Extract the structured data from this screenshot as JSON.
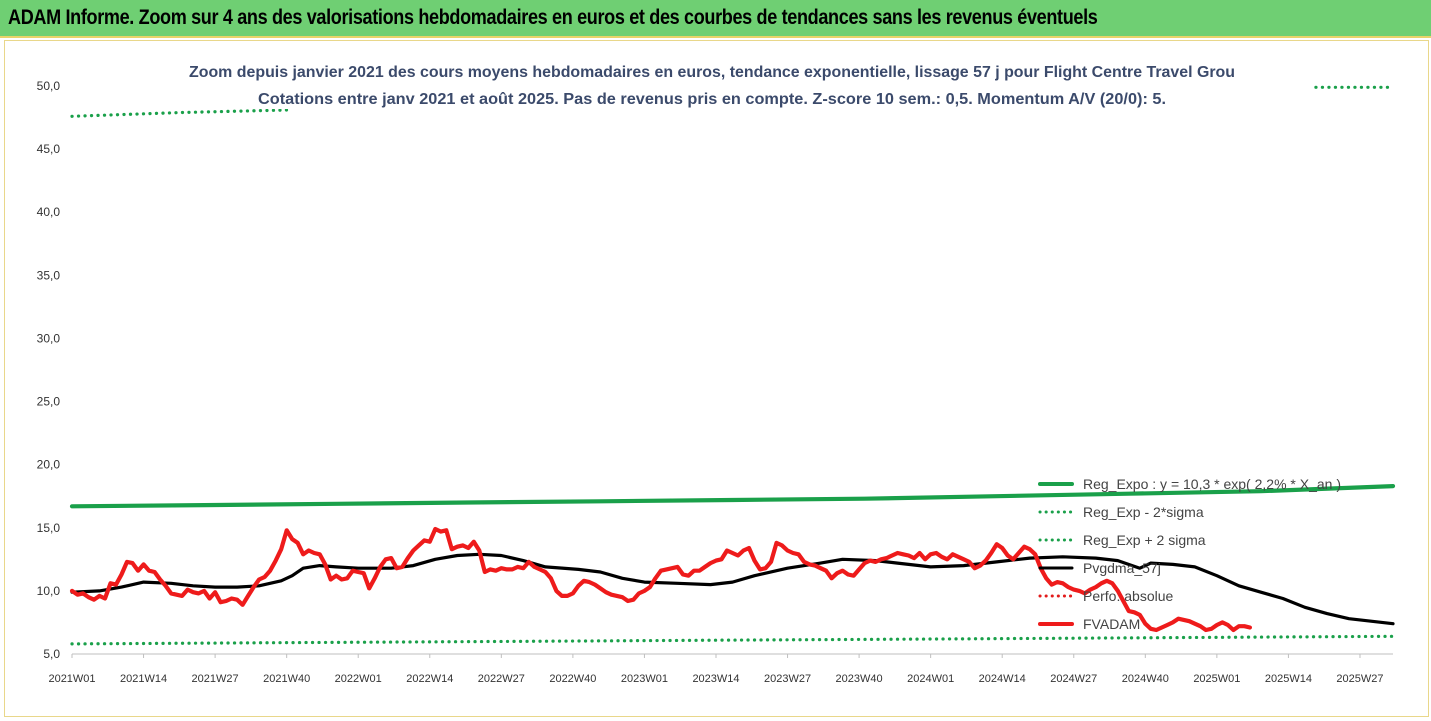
{
  "banner": {
    "title": "ADAM Informe. Zoom sur 4 ans des valorisations hebdomadaires en euros et des courbes de tendances sans les revenus éventuels"
  },
  "chart_data": {
    "type": "line",
    "title": "Zoom depuis janvier 2021 des cours moyens hebdomadaires en euros, tendance exponentielle, lissage 57 j pour Flight  Centre Travel Grou",
    "subtitle": "Cotations entre janv 2021 et août 2025.  Pas de revenus pris en compte. Z-score 10 sem.: 0,5. Momentum A/V (20/0): 5.",
    "xlabel": "",
    "ylabel": "",
    "ylim": [
      5,
      50
    ],
    "yticks": [
      "5,0",
      "10,0",
      "15,0",
      "20,0",
      "25,0",
      "30,0",
      "35,0",
      "40,0",
      "45,0",
      "50,0"
    ],
    "xticks": [
      "2021W01",
      "2021W14",
      "2021W27",
      "2021W40",
      "2022W01",
      "2022W14",
      "2022W27",
      "2022W40",
      "2023W01",
      "2023W14",
      "2023W27",
      "2023W40",
      "2024W01",
      "2024W14",
      "2024W27",
      "2024W40",
      "2025W01",
      "2025W14",
      "2025W27"
    ],
    "week_count": 241,
    "grid": "none",
    "legend_position": "right",
    "series": [
      {
        "name": "Reg_Expo : y = 10,3 * exp( 2,2% *  X_an )",
        "style": "solid",
        "color": "#1aa04a",
        "points": [
          [
            0,
            16.7
          ],
          [
            24,
            16.8
          ],
          [
            48,
            16.9
          ],
          [
            72,
            17.0
          ],
          [
            96,
            17.1
          ],
          [
            120,
            17.2
          ],
          [
            144,
            17.3
          ],
          [
            168,
            17.5
          ],
          [
            192,
            17.7
          ],
          [
            216,
            17.9
          ],
          [
            240,
            18.3
          ]
        ]
      },
      {
        "name": "Reg_Exp - 2*sigma",
        "style": "dotted",
        "color": "#1aa04a",
        "points": [
          [
            0,
            5.8
          ],
          [
            40,
            5.9
          ],
          [
            80,
            6.0
          ],
          [
            120,
            6.1
          ],
          [
            160,
            6.2
          ],
          [
            200,
            6.3
          ],
          [
            240,
            6.4
          ]
        ]
      },
      {
        "name": "Reg_Exp + 2 sigma",
        "style": "dotted",
        "color": "#1aa04a",
        "points": [
          [
            0,
            47.6
          ],
          [
            20,
            47.9
          ],
          [
            39,
            48.1
          ]
        ],
        "points_right": [
          [
            226,
            49.9
          ],
          [
            240,
            49.9
          ]
        ]
      },
      {
        "name": "Pvgdma_57j",
        "style": "solid",
        "color": "#000000",
        "points": [
          [
            0,
            9.9
          ],
          [
            5,
            10.0
          ],
          [
            9,
            10.3
          ],
          [
            13,
            10.7
          ],
          [
            18,
            10.6
          ],
          [
            22,
            10.4
          ],
          [
            26,
            10.3
          ],
          [
            30,
            10.3
          ],
          [
            34,
            10.4
          ],
          [
            38,
            10.8
          ],
          [
            40,
            11.2
          ],
          [
            42,
            11.8
          ],
          [
            45,
            12.0
          ],
          [
            48,
            11.9
          ],
          [
            52,
            11.8
          ],
          [
            58,
            11.8
          ],
          [
            62,
            12.0
          ],
          [
            66,
            12.5
          ],
          [
            70,
            12.8
          ],
          [
            74,
            12.9
          ],
          [
            78,
            12.8
          ],
          [
            82,
            12.4
          ],
          [
            86,
            11.9
          ],
          [
            92,
            11.7
          ],
          [
            96,
            11.5
          ],
          [
            100,
            11.0
          ],
          [
            104,
            10.7
          ],
          [
            110,
            10.6
          ],
          [
            116,
            10.5
          ],
          [
            120,
            10.7
          ],
          [
            124,
            11.2
          ],
          [
            130,
            11.8
          ],
          [
            136,
            12.2
          ],
          [
            140,
            12.5
          ],
          [
            146,
            12.4
          ],
          [
            150,
            12.2
          ],
          [
            156,
            11.9
          ],
          [
            162,
            12.0
          ],
          [
            168,
            12.3
          ],
          [
            174,
            12.6
          ],
          [
            180,
            12.7
          ],
          [
            186,
            12.6
          ],
          [
            190,
            12.4
          ],
          [
            194,
            11.8
          ],
          [
            196,
            12.2
          ],
          [
            200,
            12.1
          ],
          [
            204,
            11.9
          ],
          [
            208,
            11.2
          ],
          [
            212,
            10.4
          ],
          [
            216,
            9.9
          ],
          [
            220,
            9.4
          ],
          [
            224,
            8.7
          ],
          [
            228,
            8.2
          ],
          [
            232,
            7.8
          ],
          [
            236,
            7.6
          ],
          [
            240,
            7.4
          ]
        ]
      },
      {
        "name": "Perfo. absolue",
        "style": "dotted",
        "color": "#e21b1b",
        "points": []
      },
      {
        "name": "FVADAM",
        "style": "solid",
        "color": "#ee1b1b",
        "points": [
          [
            0,
            10.0
          ],
          [
            1,
            9.7
          ],
          [
            2,
            9.8
          ],
          [
            3,
            9.5
          ],
          [
            4,
            9.3
          ],
          [
            5,
            9.6
          ],
          [
            6,
            9.4
          ],
          [
            7,
            10.6
          ],
          [
            8,
            10.5
          ],
          [
            9,
            11.3
          ],
          [
            10,
            12.3
          ],
          [
            11,
            12.2
          ],
          [
            12,
            11.6
          ],
          [
            13,
            12.1
          ],
          [
            14,
            11.6
          ],
          [
            15,
            11.5
          ],
          [
            16,
            10.9
          ],
          [
            17,
            10.4
          ],
          [
            18,
            9.8
          ],
          [
            19,
            9.7
          ],
          [
            20,
            9.6
          ],
          [
            21,
            10.1
          ],
          [
            22,
            9.9
          ],
          [
            23,
            9.8
          ],
          [
            24,
            10.0
          ],
          [
            25,
            9.4
          ],
          [
            26,
            9.9
          ],
          [
            27,
            9.1
          ],
          [
            28,
            9.2
          ],
          [
            29,
            9.4
          ],
          [
            30,
            9.3
          ],
          [
            31,
            8.9
          ],
          [
            32,
            9.6
          ],
          [
            33,
            10.3
          ],
          [
            34,
            10.9
          ],
          [
            35,
            11.1
          ],
          [
            36,
            11.6
          ],
          [
            37,
            12.4
          ],
          [
            38,
            13.3
          ],
          [
            39,
            14.8
          ],
          [
            40,
            14.1
          ],
          [
            41,
            13.8
          ],
          [
            42,
            12.9
          ],
          [
            43,
            13.2
          ],
          [
            44,
            13.0
          ],
          [
            45,
            12.9
          ],
          [
            46,
            12.1
          ],
          [
            47,
            10.9
          ],
          [
            48,
            11.2
          ],
          [
            49,
            10.9
          ],
          [
            50,
            11.0
          ],
          [
            51,
            11.6
          ],
          [
            52,
            11.5
          ],
          [
            53,
            11.4
          ],
          [
            54,
            10.2
          ],
          [
            55,
            11.0
          ],
          [
            56,
            11.9
          ],
          [
            57,
            12.5
          ],
          [
            58,
            12.6
          ],
          [
            59,
            11.8
          ],
          [
            60,
            11.9
          ],
          [
            61,
            12.6
          ],
          [
            62,
            13.2
          ],
          [
            63,
            13.6
          ],
          [
            64,
            14.0
          ],
          [
            65,
            13.9
          ],
          [
            66,
            14.9
          ],
          [
            67,
            14.7
          ],
          [
            68,
            14.8
          ],
          [
            69,
            13.3
          ],
          [
            70,
            13.5
          ],
          [
            71,
            13.6
          ],
          [
            72,
            13.4
          ],
          [
            73,
            13.9
          ],
          [
            74,
            13.2
          ],
          [
            75,
            11.5
          ],
          [
            76,
            11.7
          ],
          [
            77,
            11.6
          ],
          [
            78,
            11.8
          ],
          [
            79,
            11.7
          ],
          [
            80,
            11.7
          ],
          [
            81,
            11.9
          ],
          [
            82,
            11.8
          ],
          [
            83,
            12.3
          ],
          [
            84,
            11.9
          ],
          [
            85,
            11.7
          ],
          [
            86,
            11.5
          ],
          [
            87,
            11.0
          ],
          [
            88,
            10.0
          ],
          [
            89,
            9.6
          ],
          [
            90,
            9.6
          ],
          [
            91,
            9.8
          ],
          [
            92,
            10.4
          ],
          [
            93,
            10.8
          ],
          [
            94,
            10.7
          ],
          [
            95,
            10.5
          ],
          [
            96,
            10.2
          ],
          [
            97,
            9.9
          ],
          [
            98,
            9.7
          ],
          [
            99,
            9.6
          ],
          [
            100,
            9.5
          ],
          [
            101,
            9.2
          ],
          [
            102,
            9.3
          ],
          [
            103,
            9.8
          ],
          [
            104,
            10.0
          ],
          [
            105,
            10.3
          ],
          [
            106,
            11.0
          ],
          [
            107,
            11.6
          ],
          [
            108,
            11.7
          ],
          [
            109,
            11.8
          ],
          [
            110,
            11.9
          ],
          [
            111,
            11.3
          ],
          [
            112,
            11.2
          ],
          [
            113,
            11.6
          ],
          [
            114,
            11.6
          ],
          [
            115,
            11.9
          ],
          [
            116,
            12.2
          ],
          [
            117,
            12.4
          ],
          [
            118,
            12.5
          ],
          [
            119,
            13.2
          ],
          [
            120,
            13.0
          ],
          [
            121,
            12.8
          ],
          [
            122,
            13.2
          ],
          [
            123,
            13.4
          ],
          [
            124,
            12.4
          ],
          [
            125,
            11.7
          ],
          [
            126,
            11.8
          ],
          [
            127,
            12.3
          ],
          [
            128,
            13.8
          ],
          [
            129,
            13.6
          ],
          [
            130,
            13.2
          ],
          [
            131,
            13.0
          ],
          [
            132,
            12.9
          ],
          [
            133,
            12.3
          ],
          [
            134,
            12.1
          ],
          [
            135,
            12.0
          ],
          [
            136,
            11.8
          ],
          [
            137,
            11.6
          ],
          [
            138,
            11.0
          ],
          [
            139,
            11.4
          ],
          [
            140,
            11.6
          ],
          [
            141,
            11.3
          ],
          [
            142,
            11.2
          ],
          [
            143,
            11.7
          ],
          [
            144,
            12.2
          ],
          [
            145,
            12.4
          ],
          [
            146,
            12.3
          ],
          [
            147,
            12.5
          ],
          [
            148,
            12.6
          ],
          [
            149,
            12.8
          ],
          [
            150,
            13.0
          ],
          [
            151,
            12.9
          ],
          [
            152,
            12.8
          ],
          [
            153,
            12.6
          ],
          [
            154,
            13.0
          ],
          [
            155,
            12.5
          ],
          [
            156,
            12.9
          ],
          [
            157,
            13.0
          ],
          [
            158,
            12.7
          ],
          [
            159,
            12.5
          ],
          [
            160,
            12.9
          ],
          [
            161,
            12.7
          ],
          [
            162,
            12.5
          ],
          [
            163,
            12.3
          ],
          [
            164,
            11.8
          ],
          [
            165,
            12.0
          ],
          [
            166,
            12.4
          ],
          [
            167,
            13.0
          ],
          [
            168,
            13.7
          ],
          [
            169,
            13.4
          ],
          [
            170,
            12.8
          ],
          [
            171,
            12.5
          ],
          [
            172,
            13.0
          ],
          [
            173,
            13.5
          ],
          [
            174,
            13.3
          ],
          [
            175,
            12.9
          ],
          [
            176,
            11.8
          ],
          [
            177,
            11.0
          ],
          [
            178,
            10.5
          ],
          [
            179,
            10.7
          ],
          [
            180,
            10.6
          ],
          [
            181,
            10.3
          ],
          [
            182,
            10.1
          ],
          [
            183,
            10.0
          ],
          [
            184,
            9.8
          ],
          [
            185,
            10.1
          ],
          [
            186,
            10.3
          ],
          [
            187,
            10.6
          ],
          [
            188,
            10.8
          ],
          [
            189,
            10.6
          ],
          [
            190,
            10.0
          ],
          [
            191,
            9.2
          ],
          [
            192,
            8.4
          ],
          [
            193,
            8.3
          ],
          [
            194,
            8.1
          ],
          [
            195,
            7.4
          ],
          [
            196,
            7.0
          ],
          [
            197,
            6.9
          ],
          [
            198,
            7.1
          ],
          [
            199,
            7.3
          ],
          [
            200,
            7.5
          ],
          [
            201,
            7.8
          ],
          [
            202,
            7.7
          ],
          [
            203,
            7.6
          ],
          [
            204,
            7.4
          ],
          [
            205,
            7.2
          ],
          [
            206,
            6.9
          ],
          [
            207,
            7.0
          ],
          [
            208,
            7.3
          ],
          [
            209,
            7.5
          ],
          [
            210,
            7.3
          ],
          [
            211,
            6.9
          ],
          [
            212,
            7.2
          ],
          [
            213,
            7.2
          ],
          [
            214,
            7.1
          ]
        ]
      }
    ]
  }
}
